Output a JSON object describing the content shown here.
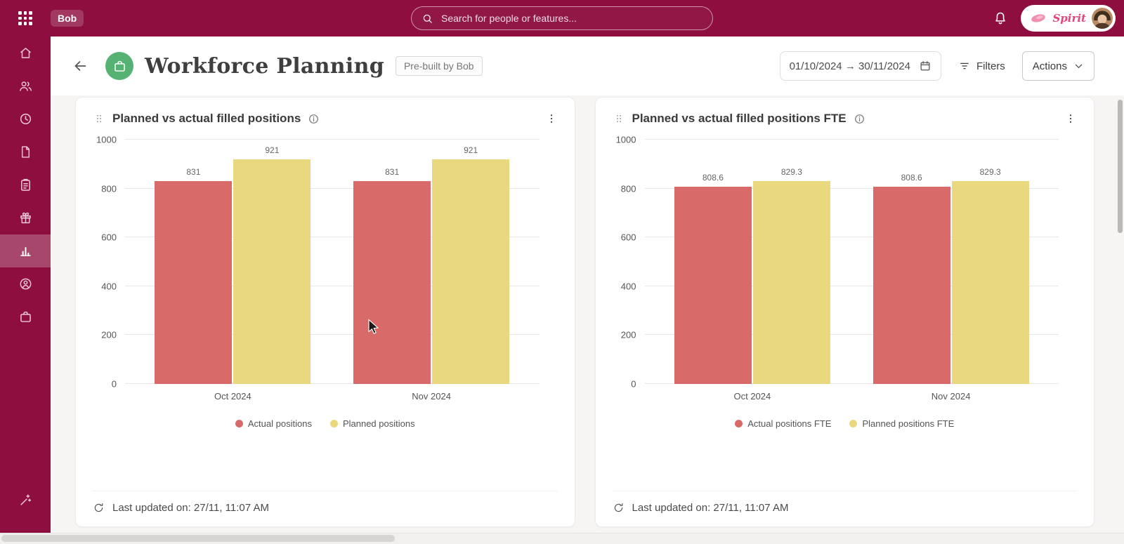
{
  "topbar": {
    "logo": "Bob",
    "search_placeholder": "Search for people or features...",
    "account_name": "Spirit"
  },
  "sidebar": {
    "items": [
      {
        "icon": "home"
      },
      {
        "icon": "people"
      },
      {
        "icon": "time"
      },
      {
        "icon": "docs"
      },
      {
        "icon": "tasks"
      },
      {
        "icon": "benefits"
      },
      {
        "icon": "analytics",
        "active": true
      },
      {
        "icon": "profile"
      },
      {
        "icon": "company"
      }
    ],
    "bottom_items": [
      {
        "icon": "magic"
      }
    ]
  },
  "header": {
    "title": "Workforce Planning",
    "badge": "Pre-built by Bob",
    "date_range": "01/10/2024 → 30/11/2024",
    "filters_label": "Filters",
    "actions_label": "Actions"
  },
  "cards": [
    {
      "last_updated": "Last updated on: 27/11, 11:07 AM"
    },
    {
      "last_updated": "Last updated on: 27/11, 11:07 AM"
    }
  ],
  "chart_data": [
    {
      "type": "bar",
      "title": "Planned vs actual filled positions",
      "categories": [
        "Oct 2024",
        "Nov 2024"
      ],
      "series": [
        {
          "name": "Actual positions",
          "color": "#d96a6a",
          "values": [
            831,
            831
          ]
        },
        {
          "name": "Planned positions",
          "color": "#e9d87d",
          "values": [
            921,
            921
          ]
        }
      ],
      "ylim": [
        0,
        1000
      ],
      "yticks": [
        0,
        200,
        400,
        600,
        800,
        1000
      ],
      "grid": true,
      "legend_position": "bottom"
    },
    {
      "type": "bar",
      "title": "Planned vs actual filled positions FTE",
      "categories": [
        "Oct 2024",
        "Nov 2024"
      ],
      "series": [
        {
          "name": "Actual positions FTE",
          "color": "#d96a6a",
          "values": [
            808.6,
            808.6
          ]
        },
        {
          "name": "Planned positions FTE",
          "color": "#e9d87d",
          "values": [
            829.3,
            829.3
          ]
        }
      ],
      "ylim": [
        0,
        1000
      ],
      "yticks": [
        0,
        200,
        400,
        600,
        800,
        1000
      ],
      "grid": true,
      "legend_position": "bottom"
    }
  ],
  "colors": {
    "brand": "#8d0e3f",
    "actual_series": "#d96a6a",
    "planned_series": "#e9d87d",
    "app_icon_green": "#55b273",
    "spirit_pink": "#e4457e"
  }
}
